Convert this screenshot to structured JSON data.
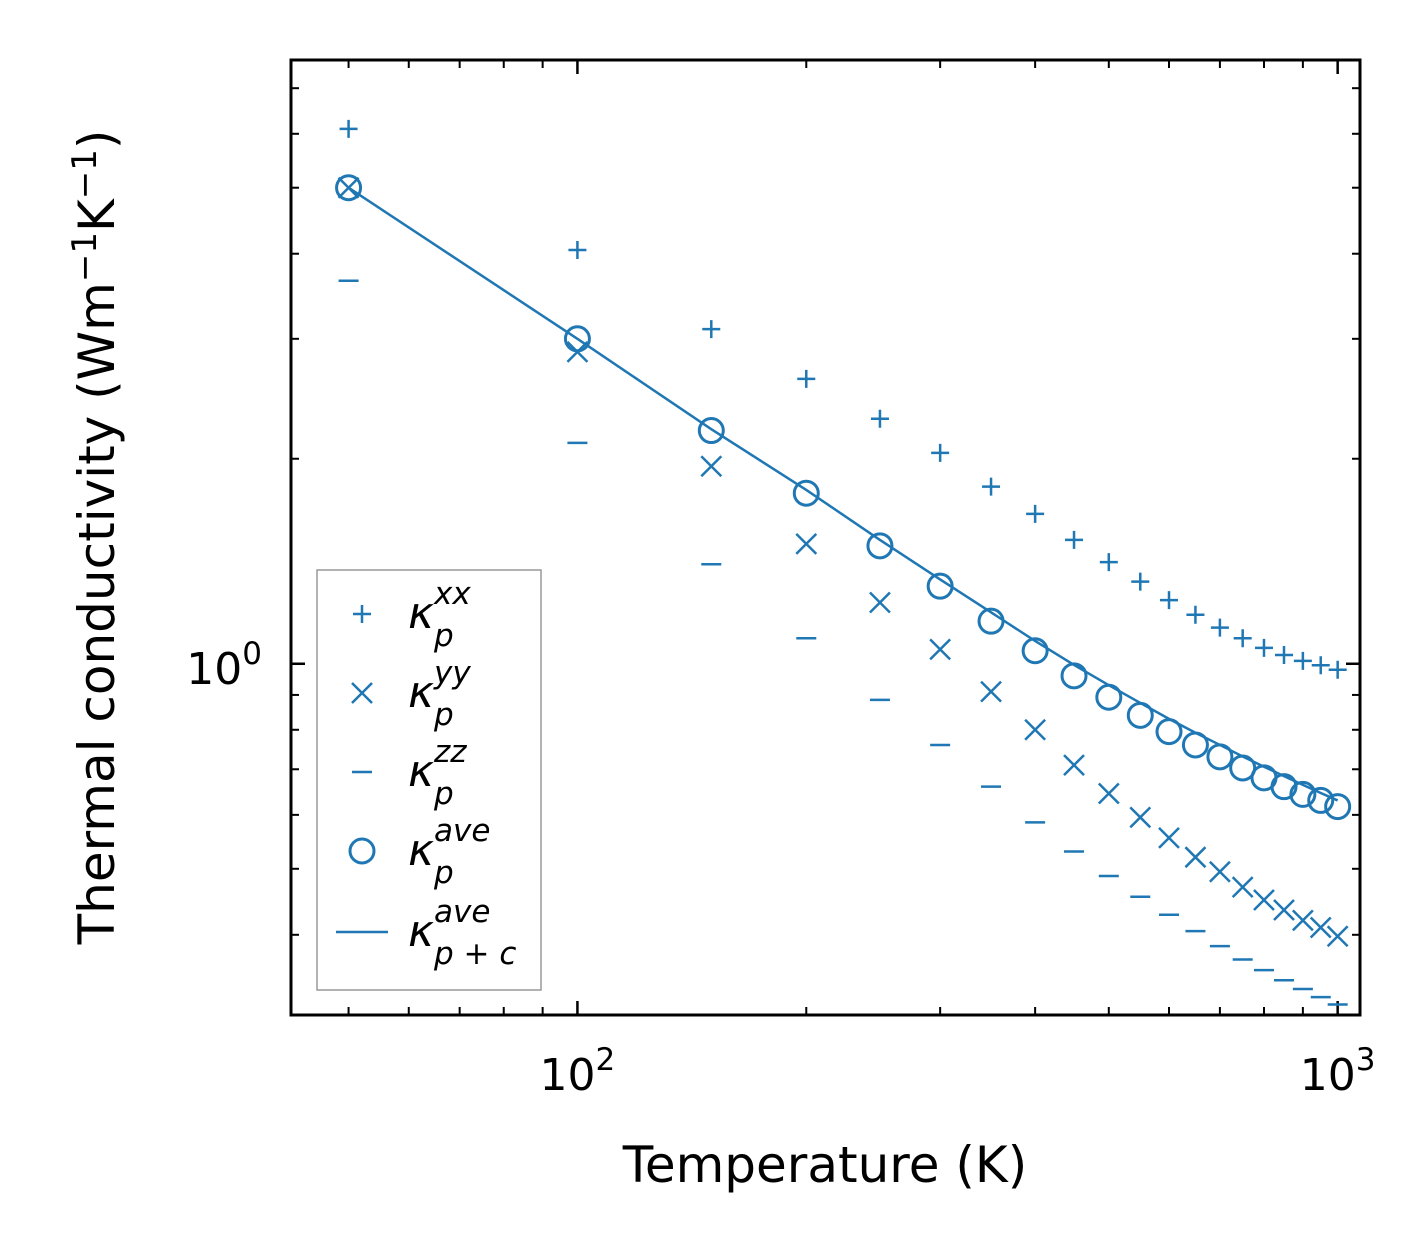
{
  "chart_data": {
    "type": "scatter",
    "title": "",
    "xlabel": "Temperature (K)",
    "ylabel": {
      "base": "Thermal conductivity (Wm",
      "exp1": "−1",
      "mid": "K",
      "exp2": "−1",
      "close": ")"
    },
    "xscale": "log",
    "yscale": "log",
    "xlim": [
      42,
      1070
    ],
    "ylim": [
      0.305,
      7.7
    ],
    "x_ticks": [
      {
        "base": "10",
        "exp": "2",
        "value": 100
      },
      {
        "base": "10",
        "exp": "3",
        "value": 1000
      }
    ],
    "y_ticks": [
      {
        "base": "10",
        "exp": "0",
        "value": 1
      }
    ],
    "legend_position": "lower-left",
    "color": "#1f77b4",
    "x": [
      50,
      100,
      150,
      200,
      250,
      300,
      350,
      400,
      450,
      500,
      550,
      600,
      650,
      700,
      750,
      800,
      850,
      900,
      950,
      1000
    ],
    "series": [
      {
        "name": "kappa_p_xx",
        "marker": "plus",
        "legend": {
          "sym": "κ",
          "sub": "p",
          "sup": "xx"
        },
        "values": [
          6.1,
          4.05,
          3.1,
          2.62,
          2.29,
          2.04,
          1.82,
          1.66,
          1.52,
          1.41,
          1.32,
          1.24,
          1.18,
          1.13,
          1.09,
          1.055,
          1.03,
          1.01,
          0.995,
          0.98
        ]
      },
      {
        "name": "kappa_p_yy",
        "marker": "x",
        "legend": {
          "sym": "κ",
          "sub": "p",
          "sup": "yy"
        },
        "values": [
          5.0,
          2.87,
          1.95,
          1.5,
          1.23,
          1.05,
          0.91,
          0.8,
          0.71,
          0.645,
          0.595,
          0.555,
          0.52,
          0.495,
          0.47,
          0.45,
          0.435,
          0.42,
          0.41,
          0.398
        ]
      },
      {
        "name": "kappa_p_zz",
        "marker": "minus",
        "legend": {
          "sym": "κ",
          "sub": "p",
          "sup": "zz"
        },
        "values": [
          3.65,
          2.11,
          1.4,
          1.09,
          0.885,
          0.76,
          0.66,
          0.585,
          0.53,
          0.488,
          0.455,
          0.428,
          0.405,
          0.385,
          0.368,
          0.355,
          0.343,
          0.333,
          0.324,
          0.316
        ]
      },
      {
        "name": "kappa_p_ave",
        "marker": "circle",
        "legend": {
          "sym": "κ",
          "sub": "p",
          "sup": "ave"
        },
        "values": [
          5.0,
          3.0,
          2.2,
          1.78,
          1.49,
          1.3,
          1.155,
          1.045,
          0.96,
          0.893,
          0.84,
          0.795,
          0.76,
          0.73,
          0.703,
          0.68,
          0.66,
          0.643,
          0.63,
          0.617
        ]
      },
      {
        "name": "kappa_pc_ave",
        "marker": "line",
        "legend": {
          "sym": "κ",
          "sub": "p + c",
          "sup": "ave"
        },
        "values": [
          5.0,
          3.0,
          2.21,
          1.8,
          1.52,
          1.33,
          1.19,
          1.08,
          0.996,
          0.93,
          0.876,
          0.83,
          0.792,
          0.76,
          0.731,
          0.706,
          0.684,
          0.664,
          0.646,
          0.63
        ]
      }
    ]
  }
}
